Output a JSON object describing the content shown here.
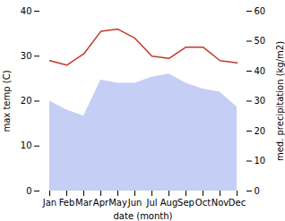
{
  "chart_data": {
    "type": "line",
    "categories": [
      "Jan",
      "Feb",
      "Mar",
      "Apr",
      "May",
      "Jun",
      "Jul",
      "Aug",
      "Sep",
      "Oct",
      "Nov",
      "Dec"
    ],
    "xlabel": "date (month)",
    "ylabel": "max temp (C)",
    "y2label": "med. precipitation (kg/m2)",
    "ylim": [
      0,
      40
    ],
    "yticks": [
      0,
      10,
      20,
      30,
      40
    ],
    "y2lim": [
      0,
      60
    ],
    "y2ticks": [
      0,
      10,
      20,
      30,
      40,
      50,
      60
    ],
    "grid": false,
    "series": [
      {
        "type": "area",
        "axis": "y2",
        "color": "#c5cef5",
        "values": [
          30,
          27,
          25,
          37,
          36,
          36,
          38,
          39,
          36,
          34,
          33,
          28
        ]
      },
      {
        "type": "line",
        "color": "#c0392b",
        "values": [
          29.0,
          28.0,
          30.5,
          35.5,
          36.0,
          34.0,
          30.0,
          29.5,
          32.0,
          32.0,
          29.0,
          28.5
        ]
      }
    ]
  }
}
